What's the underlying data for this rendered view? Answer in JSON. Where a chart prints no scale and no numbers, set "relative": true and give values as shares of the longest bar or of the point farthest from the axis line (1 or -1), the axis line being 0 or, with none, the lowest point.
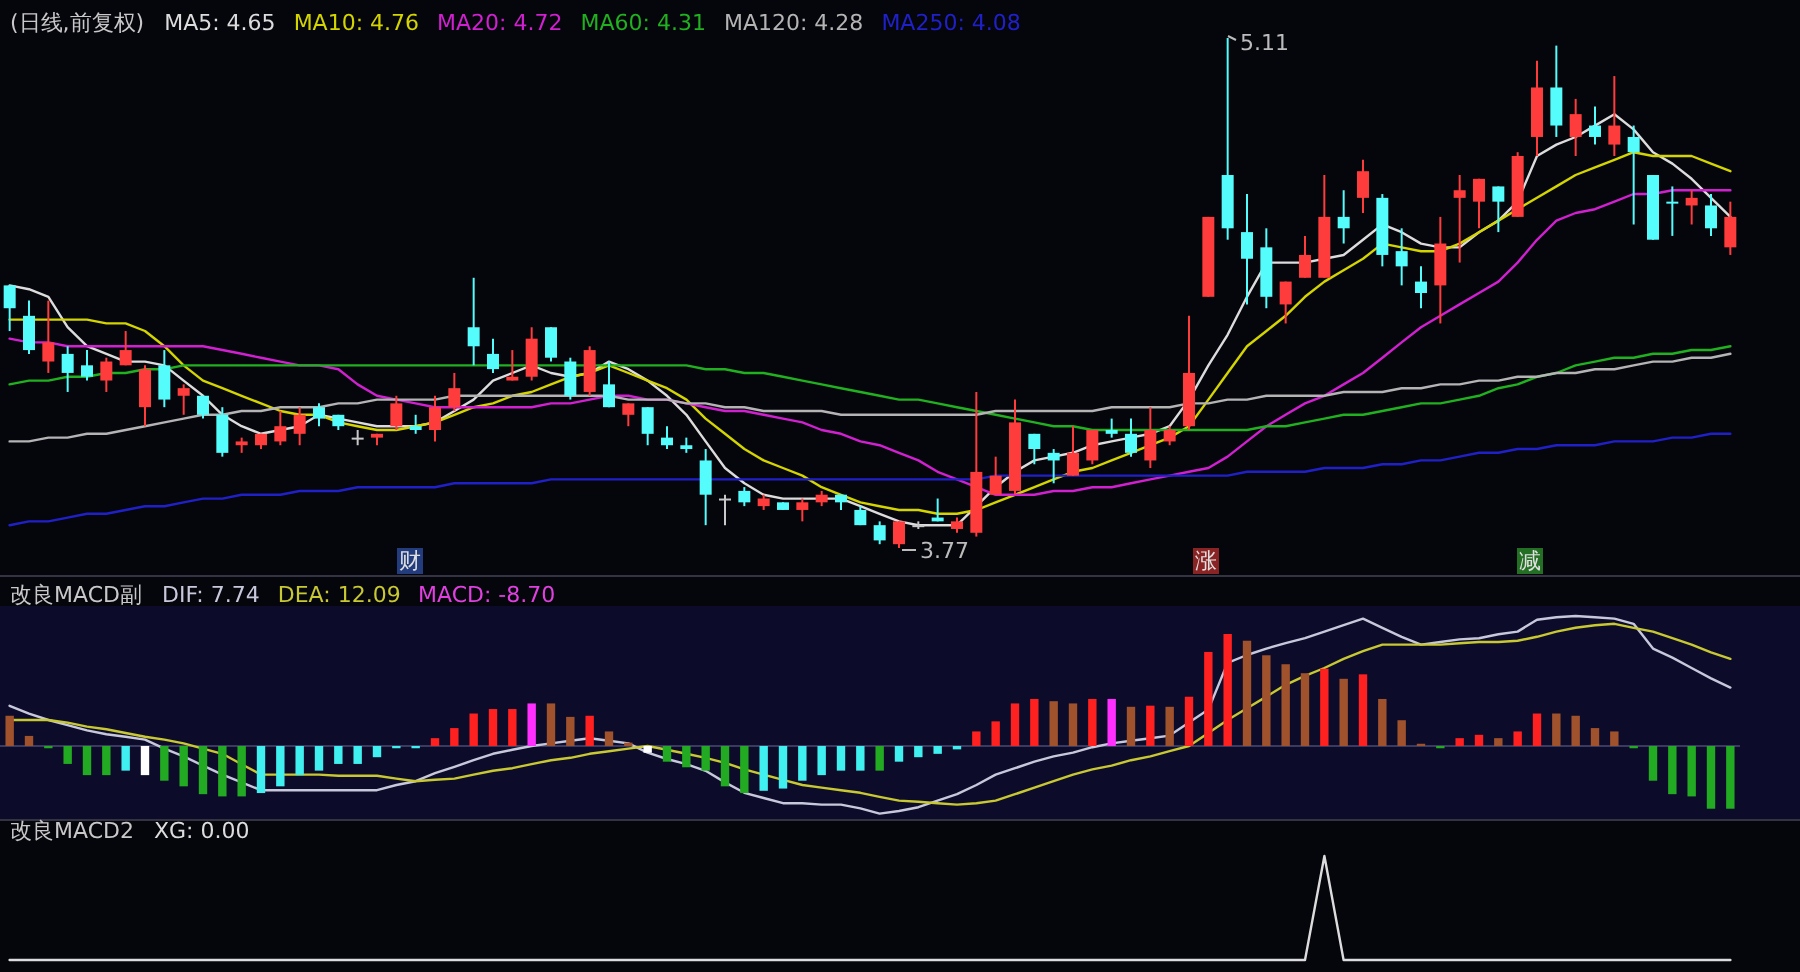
{
  "chart_data": [
    {
      "type": "candlestick",
      "title": "(日线,前复权)",
      "categories": [
        null,
        null,
        null,
        null,
        null,
        null,
        null,
        null,
        null,
        null,
        null,
        null,
        null,
        null,
        null,
        null,
        null,
        null,
        null,
        null,
        null,
        null,
        null,
        null,
        null,
        null,
        null,
        null,
        null,
        null,
        null,
        null,
        null,
        null,
        null,
        null,
        null,
        null,
        null,
        null,
        null,
        null,
        null,
        null,
        null,
        null,
        null,
        null,
        null,
        null,
        null,
        null,
        null,
        null,
        null,
        null,
        null,
        null,
        null,
        null,
        null,
        null,
        null,
        null,
        null,
        null,
        null,
        null,
        null,
        null,
        null,
        null,
        null,
        null,
        null,
        null,
        null,
        null,
        null,
        null,
        null,
        null,
        null,
        null,
        null,
        null,
        null,
        null,
        null,
        null
      ],
      "ohlc": [
        [
          4.46,
          4.46,
          4.34,
          4.4
        ],
        [
          4.38,
          4.42,
          4.28,
          4.29
        ],
        [
          4.26,
          4.42,
          4.23,
          4.31
        ],
        [
          4.28,
          4.3,
          4.18,
          4.23
        ],
        [
          4.25,
          4.29,
          4.21,
          4.22
        ],
        [
          4.21,
          4.27,
          4.18,
          4.26
        ],
        [
          4.25,
          4.34,
          4.25,
          4.29
        ],
        [
          4.14,
          4.25,
          4.09,
          4.24
        ],
        [
          4.25,
          4.29,
          4.14,
          4.16
        ],
        [
          4.17,
          4.2,
          4.12,
          4.19
        ],
        [
          4.17,
          4.17,
          4.11,
          4.12
        ],
        [
          4.12,
          4.14,
          4.01,
          4.02
        ],
        [
          4.04,
          4.06,
          4.02,
          4.05
        ],
        [
          4.04,
          4.07,
          4.03,
          4.07
        ],
        [
          4.05,
          4.13,
          4.04,
          4.09
        ],
        [
          4.07,
          4.14,
          4.04,
          4.12
        ],
        [
          4.14,
          4.15,
          4.09,
          4.11
        ],
        [
          4.12,
          4.12,
          4.08,
          4.09
        ],
        [
          4.06,
          4.08,
          4.04,
          4.06
        ],
        [
          4.06,
          4.07,
          4.04,
          4.07
        ],
        [
          4.09,
          4.17,
          4.08,
          4.15
        ],
        [
          4.09,
          4.12,
          4.07,
          4.08
        ],
        [
          4.08,
          4.17,
          4.05,
          4.14
        ],
        [
          4.14,
          4.23,
          4.13,
          4.19
        ],
        [
          4.35,
          4.48,
          4.25,
          4.3
        ],
        [
          4.28,
          4.32,
          4.23,
          4.24
        ],
        [
          4.21,
          4.29,
          4.21,
          4.22
        ],
        [
          4.22,
          4.35,
          4.21,
          4.32
        ],
        [
          4.35,
          4.35,
          4.26,
          4.27
        ],
        [
          4.26,
          4.27,
          4.16,
          4.17
        ],
        [
          4.18,
          4.3,
          4.17,
          4.29
        ],
        [
          4.2,
          4.26,
          4.14,
          4.14
        ],
        [
          4.12,
          4.15,
          4.09,
          4.15
        ],
        [
          4.14,
          4.14,
          4.04,
          4.07
        ],
        [
          4.06,
          4.09,
          4.03,
          4.04
        ],
        [
          4.04,
          4.06,
          4.02,
          4.03
        ],
        [
          4.0,
          4.03,
          3.83,
          3.91
        ],
        [
          3.9,
          3.91,
          3.83,
          3.9
        ],
        [
          3.92,
          3.93,
          3.88,
          3.89
        ],
        [
          3.88,
          3.91,
          3.87,
          3.9
        ],
        [
          3.89,
          3.89,
          3.87,
          3.87
        ],
        [
          3.87,
          3.9,
          3.84,
          3.89
        ],
        [
          3.89,
          3.92,
          3.88,
          3.91
        ],
        [
          3.91,
          3.91,
          3.87,
          3.89
        ],
        [
          3.87,
          3.88,
          3.83,
          3.83
        ],
        [
          3.83,
          3.84,
          3.78,
          3.79
        ],
        [
          3.78,
          3.84,
          3.77,
          3.84
        ],
        [
          3.83,
          3.84,
          3.82,
          3.83
        ],
        [
          3.85,
          3.9,
          3.84,
          3.84
        ],
        [
          3.82,
          3.85,
          3.81,
          3.84
        ],
        [
          3.81,
          4.18,
          3.8,
          3.97
        ],
        [
          3.91,
          4.01,
          3.91,
          3.96
        ],
        [
          3.92,
          4.16,
          3.91,
          4.1
        ],
        [
          4.07,
          4.07,
          3.99,
          4.03
        ],
        [
          4.02,
          4.03,
          3.94,
          4.0
        ],
        [
          3.96,
          4.09,
          3.96,
          4.02
        ],
        [
          4.0,
          4.08,
          3.99,
          4.08
        ],
        [
          4.08,
          4.11,
          4.06,
          4.07
        ],
        [
          4.07,
          4.11,
          4.01,
          4.02
        ],
        [
          4.0,
          4.14,
          3.98,
          4.08
        ],
        [
          4.05,
          4.09,
          4.04,
          4.08
        ],
        [
          4.09,
          4.38,
          4.08,
          4.23
        ],
        [
          4.43,
          4.64,
          4.43,
          4.64
        ],
        [
          4.75,
          5.11,
          4.58,
          4.61
        ],
        [
          4.6,
          4.7,
          4.41,
          4.53
        ],
        [
          4.56,
          4.61,
          4.4,
          4.43
        ],
        [
          4.41,
          4.47,
          4.36,
          4.47
        ],
        [
          4.48,
          4.59,
          4.48,
          4.54
        ],
        [
          4.48,
          4.75,
          4.48,
          4.64
        ],
        [
          4.64,
          4.71,
          4.57,
          4.61
        ],
        [
          4.69,
          4.79,
          4.65,
          4.76
        ],
        [
          4.69,
          4.7,
          4.51,
          4.54
        ],
        [
          4.55,
          4.61,
          4.46,
          4.51
        ],
        [
          4.47,
          4.51,
          4.4,
          4.44
        ],
        [
          4.46,
          4.64,
          4.36,
          4.57
        ],
        [
          4.69,
          4.75,
          4.52,
          4.71
        ],
        [
          4.68,
          4.74,
          4.61,
          4.74
        ],
        [
          4.72,
          4.72,
          4.6,
          4.68
        ],
        [
          4.64,
          4.81,
          4.64,
          4.8
        ],
        [
          4.85,
          5.05,
          4.8,
          4.98
        ],
        [
          4.98,
          5.09,
          4.85,
          4.88
        ],
        [
          4.85,
          4.95,
          4.8,
          4.91
        ],
        [
          4.88,
          4.93,
          4.83,
          4.85
        ],
        [
          4.83,
          5.01,
          4.8,
          4.88
        ],
        [
          4.85,
          4.88,
          4.62,
          4.81
        ],
        [
          4.75,
          4.75,
          4.58,
          4.58
        ],
        [
          4.68,
          4.72,
          4.59,
          4.68
        ],
        [
          4.67,
          4.71,
          4.62,
          4.69
        ],
        [
          4.67,
          4.7,
          4.59,
          4.61
        ],
        [
          4.56,
          4.68,
          4.54,
          4.64
        ]
      ],
      "colors": [
        "#54fcfc",
        "#54fcfc",
        "#ff3c3c",
        "#54fcfc",
        "#54fcfc",
        "#ff3c3c",
        "#ff3c3c",
        "#ff3c3c",
        "#54fcfc",
        "#ff3c3c",
        "#54fcfc",
        "#54fcfc",
        "#ff3c3c",
        "#ff3c3c",
        "#ff3c3c",
        "#ff3c3c",
        "#54fcfc",
        "#54fcfc",
        "#c8c8c8",
        "#ff3c3c",
        "#ff3c3c",
        "#54fcfc",
        "#ff3c3c",
        "#ff3c3c",
        "#54fcfc",
        "#54fcfc",
        "#ff3c3c",
        "#ff3c3c",
        "#54fcfc",
        "#54fcfc",
        "#ff3c3c",
        "#54fcfc",
        "#ff3c3c",
        "#54fcfc",
        "#54fcfc",
        "#54fcfc",
        "#54fcfc",
        "#c8c8c8",
        "#54fcfc",
        "#ff3c3c",
        "#54fcfc",
        "#ff3c3c",
        "#ff3c3c",
        "#54fcfc",
        "#54fcfc",
        "#54fcfc",
        "#ff3c3c",
        "#c8c8c8",
        "#54fcfc",
        "#ff3c3c",
        "#ff3c3c",
        "#ff3c3c",
        "#ff3c3c",
        "#54fcfc",
        "#54fcfc",
        "#ff3c3c",
        "#ff3c3c",
        "#54fcfc",
        "#54fcfc",
        "#ff3c3c",
        "#ff3c3c",
        "#ff3c3c",
        "#ff3c3c",
        "#54fcfc",
        "#54fcfc",
        "#54fcfc",
        "#ff3c3c",
        "#ff3c3c",
        "#ff3c3c",
        "#54fcfc",
        "#ff3c3c",
        "#54fcfc",
        "#54fcfc",
        "#54fcfc",
        "#ff3c3c",
        "#ff3c3c",
        "#ff3c3c",
        "#54fcfc",
        "#ff3c3c",
        "#ff3c3c",
        "#54fcfc",
        "#ff3c3c",
        "#54fcfc",
        "#ff3c3c",
        "#54fcfc",
        "#54fcfc",
        "#54fcfc",
        "#ff3c3c",
        "#54fcfc",
        "#ff3c3c"
      ],
      "series": [
        {
          "name": "MA5: 4.65",
          "type": "line",
          "color": "#dcdcdc",
          "values": [
            4.46,
            4.45,
            4.43,
            4.35,
            4.3,
            4.28,
            4.26,
            4.26,
            4.25,
            4.21,
            4.17,
            4.12,
            4.09,
            4.07,
            4.08,
            4.09,
            4.12,
            4.11,
            4.1,
            4.09,
            4.09,
            4.09,
            4.1,
            4.13,
            4.16,
            4.21,
            4.23,
            4.25,
            4.23,
            4.22,
            4.23,
            4.26,
            4.24,
            4.21,
            4.17,
            4.12,
            4.05,
            3.98,
            3.94,
            3.91,
            3.9,
            3.9,
            3.9,
            3.9,
            3.88,
            3.86,
            3.84,
            3.83,
            3.83,
            3.83,
            3.88,
            3.93,
            3.97,
            4.0,
            4.01,
            4.02,
            4.04,
            4.05,
            4.06,
            4.07,
            4.09,
            4.16,
            4.25,
            4.33,
            4.43,
            4.52,
            4.52,
            4.52,
            4.53,
            4.54,
            4.58,
            4.62,
            4.6,
            4.57,
            4.56,
            4.56,
            4.6,
            4.63,
            4.68,
            4.8,
            4.83,
            4.85,
            4.88,
            4.91,
            4.87,
            4.81,
            4.78,
            4.74,
            4.69,
            4.64
          ]
        },
        {
          "name": "MA10: 4.76",
          "type": "line",
          "color": "#d4d400",
          "values": [
            4.37,
            4.37,
            4.37,
            4.37,
            4.37,
            4.36,
            4.36,
            4.34,
            4.3,
            4.25,
            4.21,
            4.19,
            4.17,
            4.15,
            4.13,
            4.12,
            4.12,
            4.1,
            4.09,
            4.08,
            4.08,
            4.09,
            4.1,
            4.12,
            4.14,
            4.15,
            4.17,
            4.18,
            4.2,
            4.22,
            4.23,
            4.25,
            4.23,
            4.21,
            4.19,
            4.16,
            4.11,
            4.07,
            4.03,
            4.0,
            3.98,
            3.96,
            3.93,
            3.91,
            3.89,
            3.88,
            3.87,
            3.87,
            3.86,
            3.86,
            3.87,
            3.89,
            3.91,
            3.93,
            3.95,
            3.97,
            3.98,
            4.0,
            4.02,
            4.04,
            4.06,
            4.09,
            4.16,
            4.23,
            4.3,
            4.34,
            4.38,
            4.43,
            4.47,
            4.5,
            4.53,
            4.57,
            4.56,
            4.55,
            4.55,
            4.57,
            4.6,
            4.63,
            4.66,
            4.69,
            4.72,
            4.75,
            4.77,
            4.79,
            4.81,
            4.8,
            4.8,
            4.8,
            4.78,
            4.76
          ]
        },
        {
          "name": "MA20: 4.72",
          "type": "line",
          "color": "#d020d0",
          "values": [
            4.32,
            4.31,
            4.31,
            4.3,
            4.3,
            4.3,
            4.3,
            4.3,
            4.3,
            4.3,
            4.3,
            4.29,
            4.28,
            4.27,
            4.26,
            4.25,
            4.25,
            4.24,
            4.2,
            4.17,
            4.16,
            4.15,
            4.14,
            4.14,
            4.14,
            4.14,
            4.14,
            4.14,
            4.15,
            4.15,
            4.16,
            4.17,
            4.17,
            4.16,
            4.16,
            4.15,
            4.14,
            4.13,
            4.13,
            4.12,
            4.11,
            4.1,
            4.08,
            4.07,
            4.05,
            4.04,
            4.02,
            4.0,
            3.97,
            3.95,
            3.93,
            3.91,
            3.91,
            3.91,
            3.92,
            3.92,
            3.93,
            3.93,
            3.94,
            3.95,
            3.96,
            3.97,
            3.98,
            4.01,
            4.05,
            4.09,
            4.12,
            4.15,
            4.17,
            4.2,
            4.23,
            4.27,
            4.31,
            4.35,
            4.38,
            4.41,
            4.44,
            4.47,
            4.52,
            4.58,
            4.63,
            4.65,
            4.66,
            4.68,
            4.7,
            4.7,
            4.71,
            4.71,
            4.71,
            4.71
          ]
        },
        {
          "name": "MA60: 4.31",
          "type": "line",
          "color": "#20b020",
          "values": [
            4.2,
            4.21,
            4.21,
            4.22,
            4.22,
            4.23,
            4.23,
            4.24,
            4.24,
            4.25,
            4.25,
            4.25,
            4.25,
            4.25,
            4.25,
            4.25,
            4.25,
            4.25,
            4.25,
            4.25,
            4.25,
            4.25,
            4.25,
            4.25,
            4.25,
            4.25,
            4.25,
            4.25,
            4.25,
            4.25,
            4.25,
            4.25,
            4.25,
            4.25,
            4.25,
            4.25,
            4.24,
            4.24,
            4.23,
            4.23,
            4.22,
            4.21,
            4.2,
            4.19,
            4.18,
            4.17,
            4.16,
            4.16,
            4.15,
            4.14,
            4.13,
            4.12,
            4.11,
            4.1,
            4.09,
            4.09,
            4.08,
            4.08,
            4.08,
            4.08,
            4.08,
            4.08,
            4.08,
            4.08,
            4.08,
            4.09,
            4.09,
            4.1,
            4.11,
            4.12,
            4.12,
            4.13,
            4.14,
            4.15,
            4.15,
            4.16,
            4.17,
            4.19,
            4.2,
            4.22,
            4.23,
            4.25,
            4.26,
            4.27,
            4.27,
            4.28,
            4.28,
            4.29,
            4.29,
            4.3
          ]
        },
        {
          "name": "MA120: 4.28",
          "type": "line",
          "color": "#b4b4b4",
          "values": [
            4.05,
            4.05,
            4.06,
            4.06,
            4.07,
            4.07,
            4.08,
            4.09,
            4.1,
            4.11,
            4.12,
            4.12,
            4.13,
            4.13,
            4.14,
            4.14,
            4.14,
            4.15,
            4.15,
            4.16,
            4.16,
            4.16,
            4.16,
            4.17,
            4.17,
            4.17,
            4.17,
            4.17,
            4.17,
            4.17,
            4.17,
            4.17,
            4.16,
            4.16,
            4.16,
            4.15,
            4.15,
            4.14,
            4.14,
            4.13,
            4.13,
            4.13,
            4.13,
            4.12,
            4.12,
            4.12,
            4.12,
            4.12,
            4.12,
            4.12,
            4.12,
            4.13,
            4.13,
            4.13,
            4.13,
            4.13,
            4.13,
            4.14,
            4.14,
            4.14,
            4.14,
            4.15,
            4.15,
            4.16,
            4.16,
            4.17,
            4.17,
            4.17,
            4.17,
            4.18,
            4.18,
            4.18,
            4.19,
            4.19,
            4.2,
            4.2,
            4.21,
            4.21,
            4.22,
            4.22,
            4.23,
            4.23,
            4.24,
            4.24,
            4.25,
            4.26,
            4.26,
            4.27,
            4.27,
            4.28
          ]
        },
        {
          "name": "MA250: 4.08",
          "type": "line",
          "color": "#2020c8",
          "values": [
            3.83,
            3.84,
            3.84,
            3.85,
            3.86,
            3.86,
            3.87,
            3.88,
            3.88,
            3.89,
            3.9,
            3.9,
            3.91,
            3.91,
            3.91,
            3.92,
            3.92,
            3.92,
            3.93,
            3.93,
            3.93,
            3.93,
            3.93,
            3.94,
            3.94,
            3.94,
            3.94,
            3.94,
            3.95,
            3.95,
            3.95,
            3.95,
            3.95,
            3.95,
            3.95,
            3.95,
            3.95,
            3.95,
            3.95,
            3.95,
            3.95,
            3.95,
            3.95,
            3.95,
            3.95,
            3.95,
            3.95,
            3.95,
            3.95,
            3.95,
            3.95,
            3.96,
            3.96,
            3.96,
            3.96,
            3.96,
            3.96,
            3.96,
            3.96,
            3.96,
            3.96,
            3.96,
            3.96,
            3.96,
            3.97,
            3.97,
            3.97,
            3.97,
            3.98,
            3.98,
            3.98,
            3.99,
            3.99,
            4.0,
            4.0,
            4.01,
            4.02,
            4.02,
            4.03,
            4.03,
            4.04,
            4.04,
            4.04,
            4.05,
            4.05,
            4.05,
            4.06,
            4.06,
            4.07,
            4.07
          ]
        }
      ],
      "annotations": [
        "5.11",
        "3.77",
        "财",
        "涨",
        "减"
      ]
    },
    {
      "type": "line",
      "title": "改良MACD副",
      "relative": true,
      "categories": [
        null,
        null,
        null,
        null,
        null,
        null,
        null,
        null,
        null,
        null,
        null,
        null,
        null,
        null,
        null,
        null,
        null,
        null,
        null,
        null,
        null,
        null,
        null,
        null,
        null,
        null,
        null,
        null,
        null,
        null,
        null,
        null,
        null,
        null,
        null,
        null,
        null,
        null,
        null,
        null,
        null,
        null,
        null,
        null,
        null,
        null,
        null,
        null,
        null,
        null,
        null,
        null,
        null,
        null,
        null,
        null,
        null,
        null,
        null,
        null,
        null,
        null,
        null,
        null,
        null,
        null,
        null,
        null,
        null,
        null,
        null,
        null,
        null,
        null,
        null,
        null,
        null,
        null,
        null,
        null,
        null,
        null,
        null,
        null,
        null,
        null,
        null,
        null,
        null,
        null
      ],
      "series": [
        {
          "name": "DIF: 7.74",
          "color": "#c8c8dc",
          "values": [
            0.31,
            0.25,
            0.2,
            0.16,
            0.12,
            0.09,
            0.07,
            0.05,
            -0.02,
            -0.08,
            -0.15,
            -0.22,
            -0.28,
            -0.34,
            -0.34,
            -0.34,
            -0.34,
            -0.34,
            -0.34,
            -0.34,
            -0.3,
            -0.27,
            -0.21,
            -0.16,
            -0.11,
            -0.06,
            -0.03,
            0.0,
            0.02,
            0.04,
            0.06,
            0.04,
            0.02,
            -0.05,
            -0.1,
            -0.14,
            -0.19,
            -0.28,
            -0.36,
            -0.4,
            -0.44,
            -0.44,
            -0.45,
            -0.45,
            -0.48,
            -0.52,
            -0.5,
            -0.47,
            -0.42,
            -0.37,
            -0.3,
            -0.22,
            -0.17,
            -0.12,
            -0.08,
            -0.05,
            -0.01,
            0.02,
            0.04,
            0.06,
            0.08,
            0.18,
            0.28,
            0.64,
            0.7,
            0.75,
            0.79,
            0.83,
            0.88,
            0.93,
            0.98,
            0.91,
            0.84,
            0.78,
            0.8,
            0.82,
            0.83,
            0.86,
            0.88,
            0.97,
            0.99,
            1.0,
            0.99,
            0.98,
            0.94,
            0.75,
            0.68,
            0.6,
            0.52,
            0.45
          ]
        },
        {
          "name": "DEA: 12.09",
          "color": "#c8c832",
          "values": [
            0.2,
            0.2,
            0.2,
            0.18,
            0.15,
            0.13,
            0.1,
            0.07,
            0.05,
            0.02,
            -0.02,
            -0.06,
            -0.14,
            -0.22,
            -0.22,
            -0.22,
            -0.22,
            -0.23,
            -0.23,
            -0.23,
            -0.25,
            -0.27,
            -0.26,
            -0.25,
            -0.22,
            -0.19,
            -0.17,
            -0.14,
            -0.11,
            -0.09,
            -0.06,
            -0.04,
            -0.02,
            0.0,
            -0.03,
            -0.06,
            -0.09,
            -0.13,
            -0.18,
            -0.22,
            -0.26,
            -0.3,
            -0.32,
            -0.34,
            -0.36,
            -0.39,
            -0.42,
            -0.43,
            -0.44,
            -0.45,
            -0.44,
            -0.42,
            -0.37,
            -0.32,
            -0.27,
            -0.22,
            -0.18,
            -0.15,
            -0.11,
            -0.08,
            -0.04,
            0.0,
            0.1,
            0.2,
            0.29,
            0.38,
            0.47,
            0.54,
            0.6,
            0.67,
            0.73,
            0.78,
            0.78,
            0.78,
            0.78,
            0.79,
            0.8,
            0.8,
            0.81,
            0.84,
            0.88,
            0.91,
            0.93,
            0.94,
            0.91,
            0.88,
            0.83,
            0.78,
            0.72,
            0.67
          ]
        }
      ]
    },
    {
      "type": "bar",
      "relative": true,
      "categories": [
        null,
        null,
        null,
        null,
        null,
        null,
        null,
        null,
        null,
        null,
        null,
        null,
        null,
        null,
        null,
        null,
        null,
        null,
        null,
        null,
        null,
        null,
        null,
        null,
        null,
        null,
        null,
        null,
        null,
        null,
        null,
        null,
        null,
        null,
        null,
        null,
        null,
        null,
        null,
        null,
        null,
        null,
        null,
        null,
        null,
        null,
        null,
        null,
        null,
        null,
        null,
        null,
        null,
        null,
        null,
        null,
        null,
        null,
        null,
        null,
        null,
        null,
        null,
        null,
        null,
        null,
        null,
        null,
        null,
        null,
        null,
        null,
        null,
        null,
        null,
        null,
        null,
        null,
        null,
        null,
        null,
        null,
        null,
        null,
        null,
        null,
        null,
        null,
        null,
        null
      ],
      "series": [
        {
          "name": "MACD: -8.70",
          "color": "#e040e0",
          "values": [
            0.27,
            0.09,
            -0.02,
            -0.16,
            -0.26,
            -0.26,
            -0.22,
            -0.26,
            -0.31,
            -0.36,
            -0.43,
            -0.45,
            -0.45,
            -0.42,
            -0.36,
            -0.26,
            -0.22,
            -0.16,
            -0.16,
            -0.1,
            -0.02,
            -0.02,
            0.07,
            0.16,
            0.29,
            0.33,
            0.33,
            0.38,
            0.38,
            0.26,
            0.27,
            0.13,
            0.03,
            -0.06,
            -0.14,
            -0.19,
            -0.22,
            -0.36,
            -0.42,
            -0.4,
            -0.38,
            -0.31,
            -0.26,
            -0.22,
            -0.22,
            -0.22,
            -0.14,
            -0.1,
            -0.07,
            -0.03,
            0.13,
            0.22,
            0.38,
            0.42,
            0.4,
            0.38,
            0.42,
            0.42,
            0.35,
            0.36,
            0.35,
            0.44,
            0.84,
            1,
            0.94,
            0.81,
            0.73,
            0.65,
            0.69,
            0.6,
            0.64,
            0.42,
            0.23,
            0.02,
            -0.02,
            0.07,
            0.1,
            0.07,
            0.13,
            0.29,
            0.29,
            0.27,
            0.16,
            0.13,
            -0.02,
            -0.31,
            -0.43,
            -0.45,
            -0.56,
            -0.56
          ],
          "colors": [
            "#a0522d",
            "#a0522d",
            "#22aa22",
            "#22aa22",
            "#22aa22",
            "#22aa22",
            "#40f0f0",
            "#ffffff",
            "#22aa22",
            "#22aa22",
            "#22aa22",
            "#22aa22",
            "#22aa22",
            "#40f0f0",
            "#40f0f0",
            "#40f0f0",
            "#40f0f0",
            "#40f0f0",
            "#40f0f0",
            "#40f0f0",
            "#40f0f0",
            "#40f0f0",
            "#ff2020",
            "#ff2020",
            "#ff2020",
            "#ff2020",
            "#ff2020",
            "#ff30ff",
            "#a0522d",
            "#a0522d",
            "#ff2020",
            "#a0522d",
            "#a0522d",
            "#ffffff",
            "#22aa22",
            "#22aa22",
            "#22aa22",
            "#22aa22",
            "#22aa22",
            "#40f0f0",
            "#40f0f0",
            "#40f0f0",
            "#40f0f0",
            "#40f0f0",
            "#40f0f0",
            "#22aa22",
            "#40f0f0",
            "#40f0f0",
            "#40f0f0",
            "#40f0f0",
            "#ff2020",
            "#ff2020",
            "#ff2020",
            "#ff2020",
            "#a0522d",
            "#a0522d",
            "#ff2020",
            "#ff30ff",
            "#a0522d",
            "#ff2020",
            "#a0522d",
            "#ff2020",
            "#ff2020",
            "#ff2020",
            "#a0522d",
            "#a0522d",
            "#a0522d",
            "#a0522d",
            "#ff2020",
            "#a0522d",
            "#ff2020",
            "#a0522d",
            "#a0522d",
            "#a0522d",
            "#22aa22",
            "#ff2020",
            "#ff2020",
            "#a0522d",
            "#ff2020",
            "#ff2020",
            "#a0522d",
            "#a0522d",
            "#a0522d",
            "#a0522d",
            "#22aa22",
            "#22aa22",
            "#22aa22",
            "#22aa22",
            "#22aa22",
            "#22aa22"
          ]
        }
      ]
    },
    {
      "type": "line",
      "title": "改良MACD2",
      "relative": true,
      "categories": [
        null,
        null,
        null,
        null,
        null,
        null,
        null,
        null,
        null,
        null,
        null,
        null,
        null,
        null,
        null,
        null,
        null,
        null,
        null,
        null,
        null,
        null,
        null,
        null,
        null,
        null,
        null,
        null,
        null,
        null,
        null,
        null,
        null,
        null,
        null,
        null,
        null,
        null,
        null,
        null,
        null,
        null,
        null,
        null,
        null,
        null,
        null,
        null,
        null,
        null,
        null,
        null,
        null,
        null,
        null,
        null,
        null,
        null,
        null,
        null,
        null,
        null,
        null,
        null,
        null,
        null,
        null,
        null,
        null,
        null,
        null,
        null,
        null,
        null,
        null,
        null,
        null,
        null,
        null,
        null,
        null,
        null,
        null,
        null,
        null,
        null,
        null,
        null,
        null,
        null
      ],
      "series": [
        {
          "name": "XG: 0.00",
          "color": "#dcdcdc",
          "values": [
            0,
            0,
            0,
            0,
            0,
            0,
            0,
            0,
            0,
            0,
            0,
            0,
            0,
            0,
            0,
            0,
            0,
            0,
            0,
            0,
            0,
            0,
            0,
            0,
            0,
            0,
            0,
            0,
            0,
            0,
            0,
            0,
            0,
            0,
            0,
            0,
            0,
            0,
            0,
            0,
            0,
            0,
            0,
            0,
            0,
            0,
            0,
            0,
            0,
            0,
            0,
            0,
            0,
            0,
            0,
            0,
            0,
            0,
            0,
            0,
            0,
            0,
            0,
            0,
            0,
            0,
            0,
            0,
            1,
            0,
            0,
            0,
            0,
            0,
            0,
            0,
            0,
            0,
            0,
            0,
            0,
            0,
            0,
            0,
            0,
            0,
            0,
            0,
            0,
            0
          ]
        }
      ]
    }
  ]
}
